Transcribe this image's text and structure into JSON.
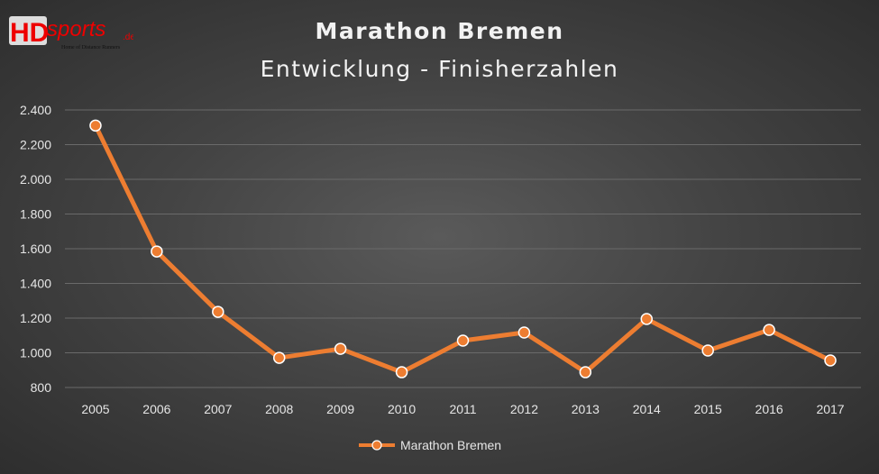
{
  "logo": {
    "text": "HDsports.de",
    "tagline": "Home of Distance Runners"
  },
  "chart_data": {
    "type": "line",
    "title": "Marathon Bremen",
    "subtitle": "Entwicklung - Finisherzahlen",
    "xlabel": "",
    "ylabel": "",
    "categories": [
      "2005",
      "2006",
      "2007",
      "2008",
      "2009",
      "2010",
      "2011",
      "2012",
      "2013",
      "2014",
      "2015",
      "2016",
      "2017"
    ],
    "series": [
      {
        "name": "Marathon Bremen",
        "color": "#ed7d31",
        "values": [
          2310,
          1584,
          1236,
          971,
          1023,
          888,
          1070,
          1117,
          888,
          1195,
          1013,
          1132,
          956
        ]
      }
    ],
    "ylim": [
      800,
      2400
    ],
    "yticks": [
      "800",
      "1.000",
      "1.200",
      "1.400",
      "1.600",
      "1.800",
      "2.000",
      "2.200",
      "2.400"
    ],
    "ytick_values": [
      800,
      1000,
      1200,
      1400,
      1600,
      1800,
      2000,
      2200,
      2400
    ],
    "grid": true,
    "legend": "bottom"
  }
}
